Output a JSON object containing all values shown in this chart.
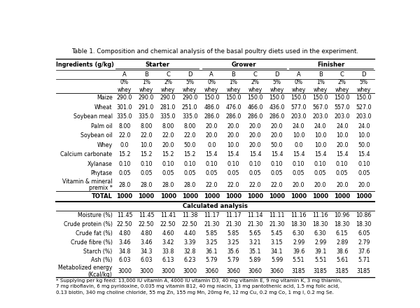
{
  "title": "Table 1. Composition and chemical analysis of the basal poultry diets used in the experiment.",
  "sub_cols": [
    "A",
    "B",
    "C",
    "D",
    "A",
    "B",
    "C",
    "D",
    "A",
    "B",
    "C",
    "D"
  ],
  "whey_labels": [
    "0%\nwhey",
    "1%\nwhey",
    "2%\nwhey",
    "5%\nwhey",
    "0%\nwhey",
    "1%\nwhey",
    "2%\nwhey",
    "5%\nwhey",
    "0%\nwhey",
    "1%\nwhey",
    "2%\nwhey",
    "5%\nwhey"
  ],
  "ingredients": [
    [
      "Maize",
      "290.0",
      "290.0",
      "290.0",
      "290.0",
      "150.0",
      "150.0",
      "150.0",
      "150.0",
      "150.0",
      "150.0",
      "150.0",
      "150.0"
    ],
    [
      "Wheat",
      "301.0",
      "291.0",
      "281.0",
      "251.0",
      "486.0",
      "476.0",
      "466.0",
      "436.0",
      "577.0",
      "567.0",
      "557.0",
      "527.0"
    ],
    [
      "Soybean meal",
      "335.0",
      "335.0",
      "335.0",
      "335.0",
      "286.0",
      "286.0",
      "286.0",
      "286.0",
      "203.0",
      "203.0",
      "203.0",
      "203.0"
    ],
    [
      "Palm oil",
      "8.00",
      "8.00",
      "8.00",
      "8.00",
      "20.0",
      "20.0",
      "20.0",
      "20.0",
      "24.0",
      "24.0",
      "24.0",
      "24.0"
    ],
    [
      "Soybean oil",
      "22.0",
      "22.0",
      "22.0",
      "22.0",
      "20.0",
      "20.0",
      "20.0",
      "20.0",
      "10.0",
      "10.0",
      "10.0",
      "10.0"
    ],
    [
      "Whey",
      "0.0",
      "10.0",
      "20.0",
      "50.0",
      "0.0",
      "10.0",
      "20.0",
      "50.0",
      "0.0",
      "10.0",
      "20.0",
      "50.0"
    ],
    [
      "Calcium carbonate",
      "15.2",
      "15.2",
      "15.2",
      "15.2",
      "15.4",
      "15.4",
      "15.4",
      "15.4",
      "15.4",
      "15.4",
      "15.4",
      "15.4"
    ],
    [
      "Xylanase",
      "0.10",
      "0.10",
      "0.10",
      "0.10",
      "0.10",
      "0.10",
      "0.10",
      "0.10",
      "0.10",
      "0.10",
      "0.10",
      "0.10"
    ],
    [
      "Phytase",
      "0.05",
      "0.05",
      "0.05",
      "0.05",
      "0.05",
      "0.05",
      "0.05",
      "0.05",
      "0.05",
      "0.05",
      "0.05",
      "0.05"
    ],
    [
      "Vitamin & mineral\npremix *",
      "28.0",
      "28.0",
      "28.0",
      "28.0",
      "22.0",
      "22.0",
      "22.0",
      "22.0",
      "20.0",
      "20.0",
      "20.0",
      "20.0"
    ]
  ],
  "total_row": [
    "TOTAL",
    "1000",
    "1000",
    "1000",
    "1000",
    "1000",
    "1000",
    "1000",
    "1000",
    "1000",
    "1000",
    "1000",
    "1000"
  ],
  "calc_header": "Calculated analysis",
  "calc_rows": [
    [
      "Moisture (%)",
      "11.45",
      "11.45",
      "11.41",
      "11.38",
      "11.17",
      "11.17",
      "11.14",
      "11.11",
      "11.16",
      "11.16",
      "10.96",
      "10.86"
    ],
    [
      "Crude protein (%)",
      "22.50",
      "22.50",
      "22.50",
      "22.50",
      "21.30",
      "21.30",
      "21.30",
      "21.30",
      "18.30",
      "18.30",
      "18.30",
      "18.30"
    ],
    [
      "Crude fat (%)",
      "4.80",
      "4.80",
      "4.60",
      "4.40",
      "5.85",
      "5.85",
      "5.65",
      "5.45",
      "6.30",
      "6.30",
      "6.15",
      "6.05"
    ],
    [
      "Crude fibre (%)",
      "3.46",
      "3.46",
      "3.42",
      "3.39",
      "3.25",
      "3.25",
      "3.21",
      "3.15",
      "2.99",
      "2.99",
      "2.89",
      "2.79"
    ],
    [
      "Starch (%)",
      "34.8",
      "34.3",
      "33.8",
      "32.8",
      "36.1",
      "35.6",
      "35.1",
      "34.1",
      "39.6",
      "39.1",
      "38.6",
      "37.6"
    ],
    [
      "Ash (%)",
      "6.03",
      "6.03",
      "6.13",
      "6.23",
      "5.79",
      "5.79",
      "5.89",
      "5.99",
      "5.51",
      "5.51",
      "5.61",
      "5.71"
    ],
    [
      "Metabolized energy\n(Kcal/kg)",
      "3000",
      "3000",
      "3000",
      "3000",
      "3060",
      "3060",
      "3060",
      "3060",
      "3185",
      "3185",
      "3185",
      "3185"
    ]
  ],
  "footnote": "* Supplying per kg feed: 13,000 IU vitamin A, 4000 IU vitamin D3, 40 mg vitamin E, 9 mg vitamin K, 3 mg thiamin,\n7 mg riboflavin, 6 mg pyridoxine, 0.035 mg vitamin B12, 40 mg niacin, 13 mg pantothenic acid, 1.5 mg folic acid,\n0.13 biotin, 340 mg choline chloride, 55 mg Zn, 155 mg Mn, 20mg Fe, 12 mg Cu, 0.2 mg Co, 1 mg I, 0.2 mg Se.",
  "bg_color": "#ffffff",
  "text_color": "#000000",
  "line_color": "#000000"
}
